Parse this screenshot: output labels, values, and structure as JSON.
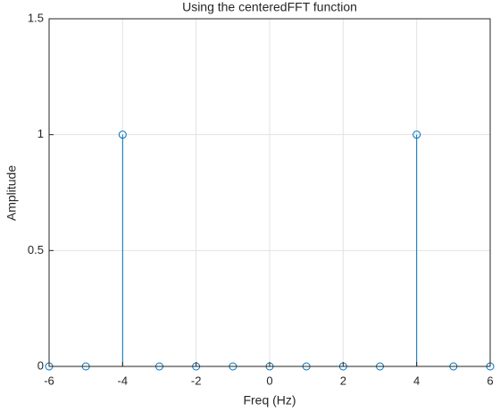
{
  "chart_data": {
    "type": "stem",
    "title": "Using the centeredFFT function",
    "x_label": "Freq (Hz)",
    "y_label": "Amplitude",
    "x": [
      -6,
      -5,
      -4,
      -3,
      -2,
      -1,
      0,
      1,
      2,
      3,
      4,
      5,
      6
    ],
    "values": [
      0,
      0,
      1,
      0,
      0,
      0,
      0,
      0,
      0,
      0,
      1,
      0,
      0
    ],
    "color": "#0072bd",
    "xlim": [
      -6,
      6
    ],
    "xticks": [
      -6,
      -4,
      -2,
      0,
      2,
      4,
      6
    ],
    "ylim": [
      0,
      1.5
    ],
    "yticks": [
      0,
      0.5,
      1,
      1.5
    ],
    "grid": true
  }
}
